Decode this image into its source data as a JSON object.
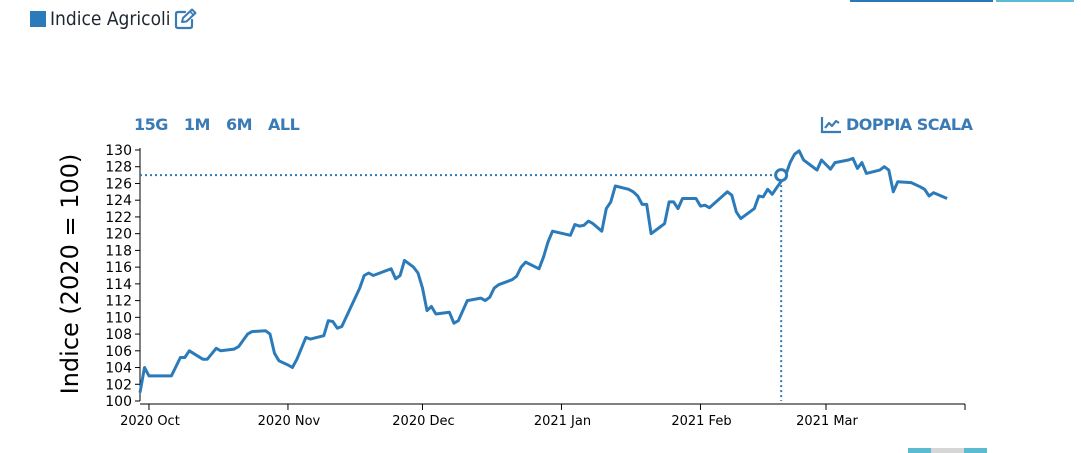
{
  "header": {
    "title": "Indice Agricoli",
    "swatch_color": "#2b7bba",
    "edit_icon": "edit-icon"
  },
  "controls": {
    "ranges": [
      "15G",
      "1M",
      "6M",
      "ALL"
    ],
    "dual_scale_label": "DOPPIA SCALA",
    "dual_scale_icon": "line-chart-icon"
  },
  "colors": {
    "line": "#2b7bba",
    "accent": "#3a7bb5"
  },
  "chart_data": {
    "type": "line",
    "title": "",
    "xlabel": "",
    "ylabel": "Indice (2020 = 100)",
    "ylim": [
      100,
      130
    ],
    "yticks": [
      100,
      102,
      104,
      106,
      108,
      110,
      112,
      114,
      116,
      118,
      120,
      122,
      124,
      126,
      128,
      130
    ],
    "xlim": [
      "2020-09-29",
      "2021-04-01"
    ],
    "xticks": [
      {
        "date": "2020-10-01",
        "label": "2020 Oct"
      },
      {
        "date": "2020-11-01",
        "label": "2020 Nov"
      },
      {
        "date": "2020-12-01",
        "label": "2020 Dec"
      },
      {
        "date": "2021-01-01",
        "label": "2021 Jan"
      },
      {
        "date": "2021-02-01",
        "label": "2021 Feb"
      },
      {
        "date": "2021-03-01",
        "label": "2021 Mar"
      }
    ],
    "series": [
      {
        "values": [
          [
            "2020-09-29",
            101.0
          ],
          [
            "2020-09-30",
            104.0
          ],
          [
            "2020-10-01",
            103.0
          ],
          [
            "2020-10-05",
            103.0
          ],
          [
            "2020-10-06",
            103.0
          ],
          [
            "2020-10-08",
            105.2
          ],
          [
            "2020-10-09",
            105.2
          ],
          [
            "2020-10-10",
            106.0
          ],
          [
            "2020-10-13",
            105.0
          ],
          [
            "2020-10-14",
            105.0
          ],
          [
            "2020-10-16",
            106.3
          ],
          [
            "2020-10-17",
            106.0
          ],
          [
            "2020-10-20",
            106.2
          ],
          [
            "2020-10-21",
            106.5
          ],
          [
            "2020-10-23",
            108.0
          ],
          [
            "2020-10-24",
            108.3
          ],
          [
            "2020-10-27",
            108.4
          ],
          [
            "2020-10-28",
            108.0
          ],
          [
            "2020-10-29",
            105.7
          ],
          [
            "2020-10-30",
            104.8
          ],
          [
            "2020-11-01",
            104.3
          ],
          [
            "2020-11-02",
            104.0
          ],
          [
            "2020-11-03",
            105.0
          ],
          [
            "2020-11-05",
            107.6
          ],
          [
            "2020-11-06",
            107.4
          ],
          [
            "2020-11-09",
            107.8
          ],
          [
            "2020-11-10",
            109.6
          ],
          [
            "2020-11-11",
            109.5
          ],
          [
            "2020-11-12",
            108.7
          ],
          [
            "2020-11-13",
            108.9
          ],
          [
            "2020-11-17",
            113.5
          ],
          [
            "2020-11-18",
            115.0
          ],
          [
            "2020-11-19",
            115.3
          ],
          [
            "2020-11-20",
            115.0
          ],
          [
            "2020-11-24",
            115.8
          ],
          [
            "2020-11-25",
            114.6
          ],
          [
            "2020-11-26",
            115.0
          ],
          [
            "2020-11-27",
            116.8
          ],
          [
            "2020-11-29",
            116.0
          ],
          [
            "2020-11-30",
            115.3
          ],
          [
            "2020-12-01",
            113.5
          ],
          [
            "2020-12-02",
            110.8
          ],
          [
            "2020-12-03",
            111.3
          ],
          [
            "2020-12-04",
            110.4
          ],
          [
            "2020-12-07",
            110.6
          ],
          [
            "2020-12-08",
            109.3
          ],
          [
            "2020-12-09",
            109.6
          ],
          [
            "2020-12-11",
            112.0
          ],
          [
            "2020-12-14",
            112.3
          ],
          [
            "2020-12-15",
            112.0
          ],
          [
            "2020-12-16",
            112.4
          ],
          [
            "2020-12-17",
            113.5
          ],
          [
            "2020-12-18",
            113.9
          ],
          [
            "2020-12-21",
            114.5
          ],
          [
            "2020-12-22",
            114.9
          ],
          [
            "2020-12-23",
            116.0
          ],
          [
            "2020-12-24",
            116.6
          ],
          [
            "2020-12-27",
            115.8
          ],
          [
            "2020-12-28",
            117.2
          ],
          [
            "2020-12-29",
            119.0
          ],
          [
            "2020-12-30",
            120.3
          ],
          [
            "2021-01-03",
            119.8
          ],
          [
            "2021-01-04",
            121.1
          ],
          [
            "2021-01-05",
            120.9
          ],
          [
            "2021-01-06",
            121.0
          ],
          [
            "2021-01-07",
            121.5
          ],
          [
            "2021-01-08",
            121.2
          ],
          [
            "2021-01-10",
            120.3
          ],
          [
            "2021-01-11",
            123.0
          ],
          [
            "2021-01-12",
            123.8
          ],
          [
            "2021-01-13",
            125.7
          ],
          [
            "2021-01-16",
            125.3
          ],
          [
            "2021-01-17",
            125.0
          ],
          [
            "2021-01-18",
            124.5
          ],
          [
            "2021-01-19",
            123.5
          ],
          [
            "2021-01-20",
            123.5
          ],
          [
            "2021-01-21",
            120.0
          ],
          [
            "2021-01-23",
            120.8
          ],
          [
            "2021-01-24",
            121.2
          ],
          [
            "2021-01-25",
            123.8
          ],
          [
            "2021-01-26",
            123.8
          ],
          [
            "2021-01-27",
            123.0
          ],
          [
            "2021-01-28",
            124.2
          ],
          [
            "2021-01-31",
            124.2
          ],
          [
            "2021-02-01",
            123.3
          ],
          [
            "2021-02-02",
            123.4
          ],
          [
            "2021-02-03",
            123.1
          ],
          [
            "2021-02-07",
            125.0
          ],
          [
            "2021-02-08",
            124.6
          ],
          [
            "2021-02-09",
            122.6
          ],
          [
            "2021-02-10",
            121.8
          ],
          [
            "2021-02-13",
            123.0
          ],
          [
            "2021-02-14",
            124.5
          ],
          [
            "2021-02-15",
            124.4
          ],
          [
            "2021-02-16",
            125.3
          ],
          [
            "2021-02-17",
            124.7
          ],
          [
            "2021-02-18",
            125.5
          ],
          [
            "2021-02-20",
            127.0
          ],
          [
            "2021-02-21",
            128.5
          ],
          [
            "2021-02-22",
            129.5
          ],
          [
            "2021-02-23",
            129.9
          ],
          [
            "2021-02-24",
            128.8
          ],
          [
            "2021-02-27",
            127.6
          ],
          [
            "2021-02-28",
            128.8
          ],
          [
            "2021-03-02",
            127.7
          ],
          [
            "2021-03-03",
            128.5
          ],
          [
            "2021-03-06",
            128.8
          ],
          [
            "2021-03-07",
            129.0
          ],
          [
            "2021-03-08",
            127.8
          ],
          [
            "2021-03-09",
            128.5
          ],
          [
            "2021-03-10",
            127.2
          ],
          [
            "2021-03-13",
            127.6
          ],
          [
            "2021-03-14",
            128.0
          ],
          [
            "2021-03-15",
            127.6
          ],
          [
            "2021-03-16",
            125.0
          ],
          [
            "2021-03-17",
            126.2
          ],
          [
            "2021-03-20",
            126.1
          ],
          [
            "2021-03-22",
            125.6
          ],
          [
            "2021-03-23",
            125.3
          ],
          [
            "2021-03-24",
            124.5
          ],
          [
            "2021-03-25",
            124.9
          ],
          [
            "2021-03-28",
            124.2
          ]
        ]
      }
    ],
    "hover": {
      "date": "2021-02-19",
      "value": 127.0
    }
  }
}
